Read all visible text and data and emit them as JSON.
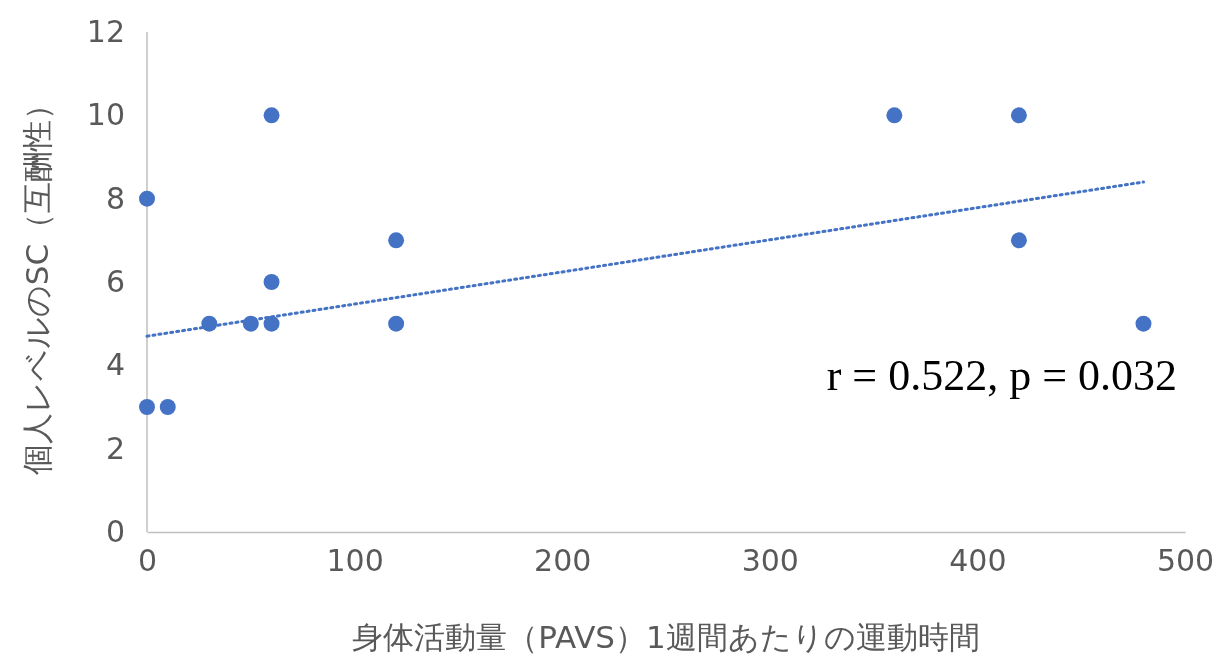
{
  "chart_data": {
    "type": "scatter",
    "xlabel": "身体活動量（PAVS）1週間あたりの運動時間",
    "ylabel": "個人レベルのSC（互酬性）",
    "xlim": [
      0,
      500
    ],
    "xticks": [
      0,
      100,
      200,
      300,
      400,
      500
    ],
    "ylim": [
      0,
      12
    ],
    "yticks": [
      0,
      2,
      4,
      6,
      8,
      10,
      12
    ],
    "grid": false,
    "series": [
      {
        "color": "#4472c4",
        "marker": "circle",
        "x": [
          0,
          0,
          10,
          30,
          50,
          60,
          60,
          60,
          120,
          120,
          360,
          420,
          420,
          480
        ],
        "values": [
          8,
          3,
          3,
          5,
          5,
          5,
          6,
          10,
          7,
          5,
          10,
          10,
          7,
          5
        ]
      },
      {
        "type": "line",
        "color": "#4472c4",
        "marker": "none",
        "line_style": "dotted",
        "x": [
          0,
          480
        ],
        "values": [
          4.7,
          8.4
        ]
      }
    ],
    "annotations": [
      "r = 0.522, p = 0.032"
    ]
  }
}
